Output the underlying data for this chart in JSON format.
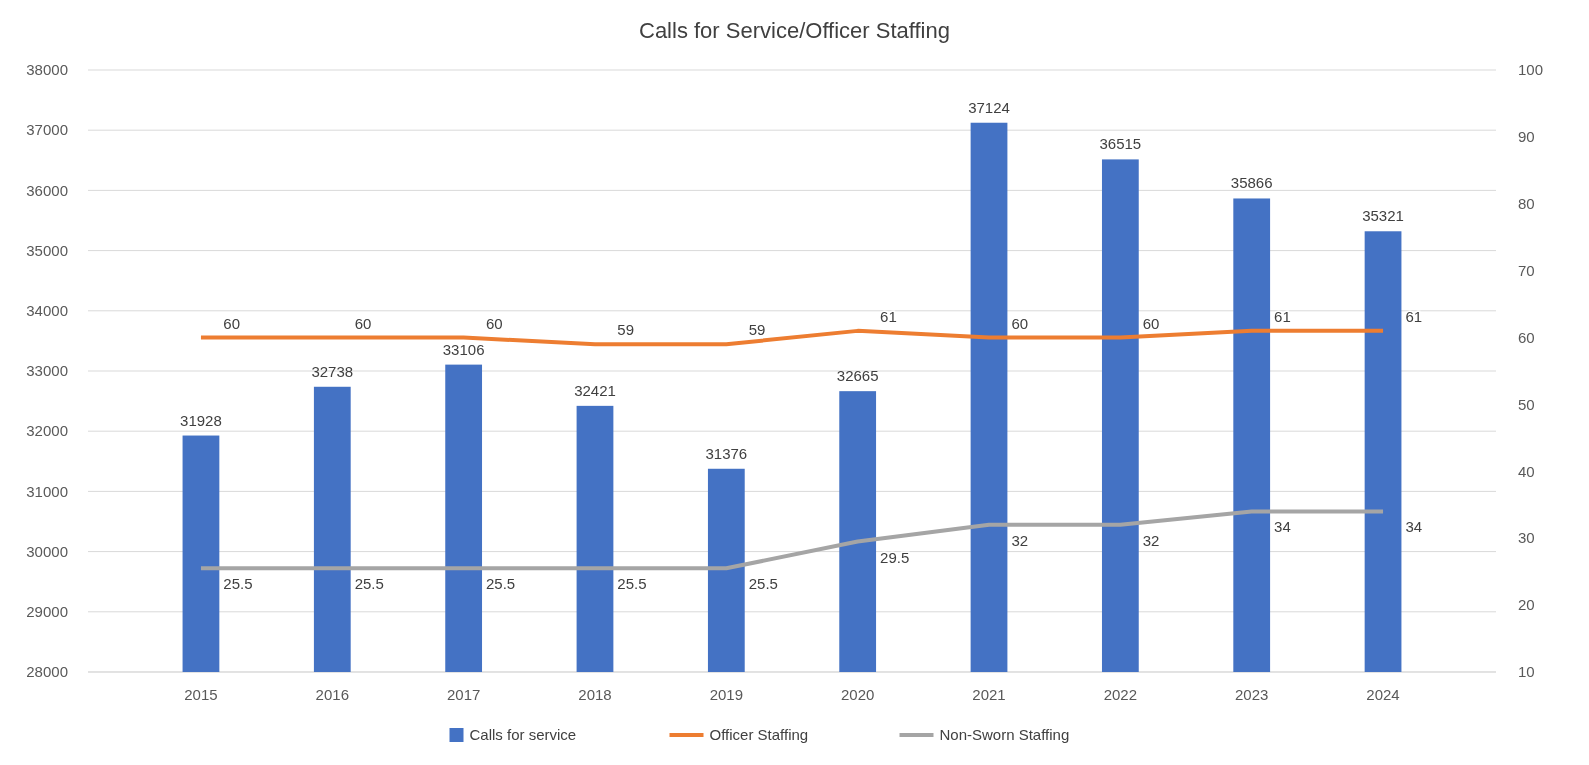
{
  "chart_data": {
    "type": "bar",
    "title": "Calls for Service/Officer Staffing",
    "categories": [
      "2015",
      "2016",
      "2017",
      "2018",
      "2019",
      "2020",
      "2021",
      "2022",
      "2023",
      "2024"
    ],
    "series": [
      {
        "name": "Calls for service",
        "color": "#4472c4",
        "values": [
          31928,
          32738,
          33106,
          32421,
          31376,
          32665,
          37124,
          36515,
          35866,
          35321
        ]
      },
      {
        "name": "Officer Staffing",
        "type": "line",
        "axis": "y2",
        "color": "#ed7d31",
        "values": [
          60,
          60,
          60,
          59,
          59,
          61,
          60,
          60,
          61,
          61
        ]
      },
      {
        "name": "Non-Sworn Staffing",
        "type": "line",
        "axis": "y2",
        "color": "#a5a5a5",
        "values": [
          25.5,
          25.5,
          25.5,
          25.5,
          25.5,
          29.5,
          32,
          32,
          34,
          34
        ]
      }
    ],
    "ylim": [
      28000,
      38000
    ],
    "yticks": [
      28000,
      29000,
      30000,
      31000,
      32000,
      33000,
      34000,
      35000,
      36000,
      37000,
      38000
    ],
    "y2lim": [
      10,
      100
    ],
    "y2ticks": [
      10,
      20,
      30,
      40,
      50,
      60,
      70,
      80,
      90,
      100
    ],
    "grid": "y",
    "legend": "bottom",
    "data_labels": true,
    "marker": "none"
  }
}
